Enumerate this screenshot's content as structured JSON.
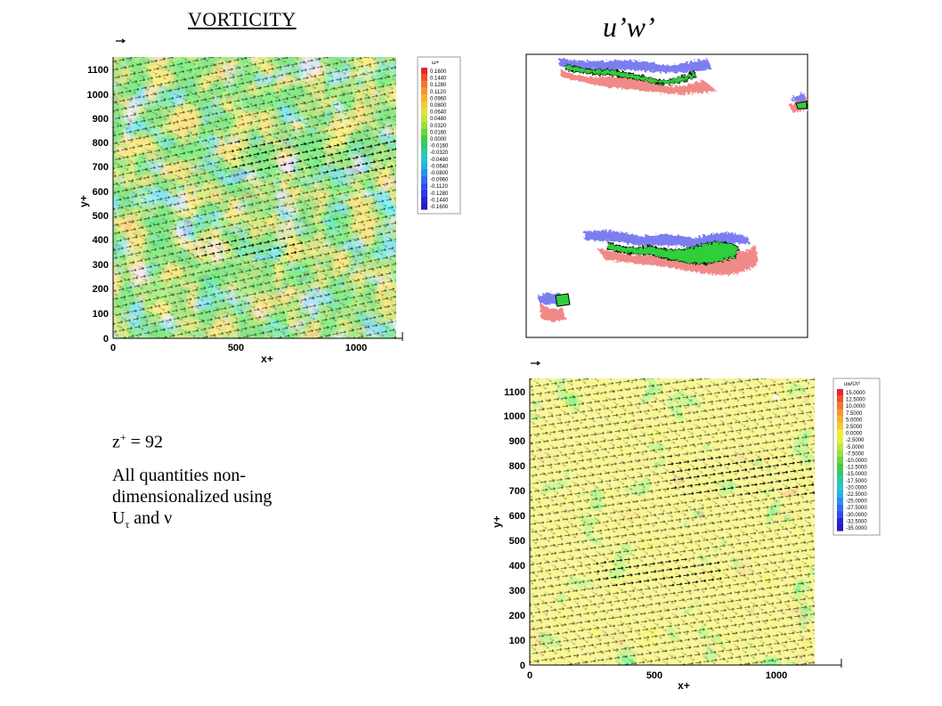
{
  "titles": {
    "vorticity": "VORTICITY",
    "uw": "u’w’"
  },
  "notes": {
    "z_prefix": "z",
    "z_sup": "+",
    "z_suffix": " = 92",
    "line1": "All quantities non-dimensionalized using",
    "u_main": "U",
    "u_sub": "τ",
    "and_nu": " and ν"
  },
  "plot_vorticity": {
    "y_label": "y+",
    "x_label": "x+",
    "y_ticks": [
      "0",
      "100",
      "200",
      "300",
      "400",
      "500",
      "600",
      "700",
      "800",
      "900",
      "1000",
      "1100"
    ],
    "x_ticks": [
      "0",
      "500",
      "1000"
    ],
    "legend_title": "ω+",
    "legend_values": [
      "0.1600",
      "0.1440",
      "0.1280",
      "0.1120",
      "0.0960",
      "0.0800",
      "0.0640",
      "0.0480",
      "0.0320",
      "0.0160",
      "0.0000",
      "-0.0160",
      "-0.0320",
      "-0.0480",
      "-0.0640",
      "-0.0800",
      "-0.0960",
      "-0.1120",
      "-0.1280",
      "-0.1440",
      "-0.1600"
    ],
    "legend_colors": [
      "#e8262a",
      "#f0502a",
      "#f3742c",
      "#f6962f",
      "#f8b232",
      "#f5c937",
      "#e6dc3c",
      "#c6e43f",
      "#9cdf3c",
      "#6cd53b",
      "#3fcc3d",
      "#2fc96f",
      "#2bc7a3",
      "#29c4cc",
      "#28b0e6",
      "#2a90ee",
      "#2c6ef0",
      "#2e4fee",
      "#2e36e8",
      "#2a22d8",
      "#241bc0"
    ]
  },
  "plot_uw": {
    "y_label": "y+",
    "x_label": "x+",
    "y_ticks": [
      "0",
      "100",
      "200",
      "300",
      "400",
      "500",
      "600",
      "700",
      "800",
      "900",
      "1000",
      "1100"
    ],
    "x_ticks": [
      "0",
      "500",
      "1000"
    ],
    "legend_title": "uw/Uτ²",
    "legend_values": [
      "15.0000",
      "12.5000",
      "10.0000",
      "7.5000",
      "5.0000",
      "2.5000",
      "0.0000",
      "-2.5000",
      "-5.0000",
      "-7.5000",
      "-10.0000",
      "-12.5000",
      "-15.0000",
      "-17.5000",
      "-20.0000",
      "-22.5000",
      "-25.0000",
      "-27.5000",
      "-30.0000",
      "-32.5000",
      "-35.0000"
    ],
    "legend_colors": [
      "#e8262a",
      "#f0502a",
      "#f3742c",
      "#f6962f",
      "#f8b232",
      "#f5c937",
      "#f2ea3a",
      "#e6ef3c",
      "#c6e43f",
      "#9cdf3c",
      "#6cd53b",
      "#3fcc3d",
      "#2fc96f",
      "#2bc7a3",
      "#29c4cc",
      "#28b0e6",
      "#2a90ee",
      "#2c6ef0",
      "#2e4fee",
      "#2a22d8",
      "#241bc0"
    ]
  },
  "colors": {
    "red_field": "#f08a88",
    "blue_field": "#7b7ef0",
    "green_field": "#2fcf3a",
    "field_green": "#43c93f",
    "field_yellow": "#eee84a"
  }
}
